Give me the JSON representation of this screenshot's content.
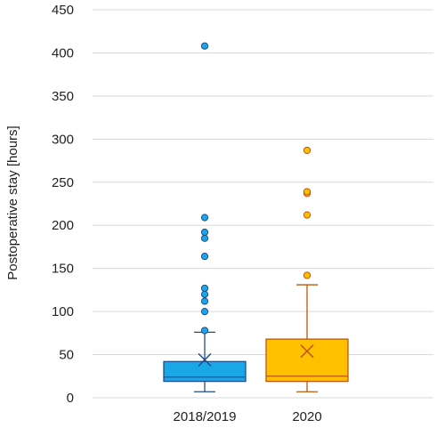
{
  "chart_data": {
    "type": "boxplot",
    "ylabel": "Postoperative stay [hours]",
    "ylim": [
      0,
      450
    ],
    "yticks": [
      0,
      50,
      100,
      150,
      200,
      250,
      300,
      350,
      400,
      450
    ],
    "grid": true,
    "categories": [
      "2018/2019",
      "2020"
    ],
    "series": [
      {
        "category": "2018/2019",
        "color": "#1aa7e8",
        "edge_color": "#1f4e8c",
        "whisker_low": 7,
        "q1": 19,
        "median": 24,
        "q3": 42,
        "whisker_high": 76,
        "mean": 44,
        "outliers": [
          78,
          100,
          112,
          120,
          127,
          164,
          185,
          192,
          209,
          408
        ]
      },
      {
        "category": "2020",
        "color": "#ffc000",
        "edge_color": "#c0560a",
        "whisker_low": 7,
        "q1": 19,
        "median": 25,
        "q3": 68,
        "whisker_high": 131,
        "mean": 54,
        "outliers": [
          142,
          212,
          237,
          239,
          287
        ]
      }
    ]
  }
}
